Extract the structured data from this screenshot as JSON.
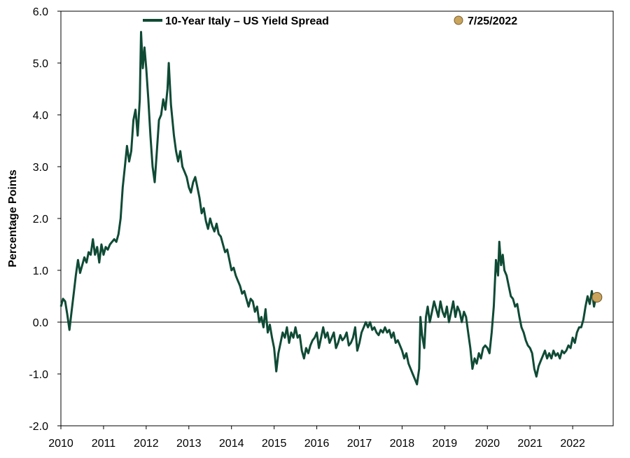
{
  "chart_data": {
    "type": "line",
    "ylabel": "Percentage Points",
    "xlabel": "",
    "ylim": [
      -2.0,
      6.0
    ],
    "xlim": [
      2010.0,
      2022.95
    ],
    "y_ticks": [
      "6.0",
      "5.0",
      "4.0",
      "3.0",
      "2.0",
      "1.0",
      "0.0",
      "-1.0",
      "-2.0"
    ],
    "y_tick_values": [
      6,
      5,
      4,
      3,
      2,
      1,
      0,
      -1,
      -2
    ],
    "x_ticks": [
      "2010",
      "2011",
      "2012",
      "2013",
      "2014",
      "2015",
      "2016",
      "2017",
      "2018",
      "2019",
      "2020",
      "2021",
      "2022"
    ],
    "x_tick_values": [
      2010,
      2011,
      2012,
      2013,
      2014,
      2015,
      2016,
      2017,
      2018,
      2019,
      2020,
      2021,
      2022
    ],
    "grid": false,
    "zero_line": true,
    "legend_position": "top",
    "series": [
      {
        "name": "10-Year Italy – US Yield Spread",
        "color": "#0f4a35",
        "points": [
          [
            2010.0,
            0.3
          ],
          [
            2010.05,
            0.45
          ],
          [
            2010.1,
            0.4
          ],
          [
            2010.15,
            0.15
          ],
          [
            2010.2,
            -0.15
          ],
          [
            2010.25,
            0.2
          ],
          [
            2010.3,
            0.55
          ],
          [
            2010.35,
            0.9
          ],
          [
            2010.4,
            1.2
          ],
          [
            2010.45,
            0.95
          ],
          [
            2010.5,
            1.1
          ],
          [
            2010.55,
            1.25
          ],
          [
            2010.6,
            1.15
          ],
          [
            2010.65,
            1.35
          ],
          [
            2010.7,
            1.3
          ],
          [
            2010.75,
            1.6
          ],
          [
            2010.8,
            1.3
          ],
          [
            2010.85,
            1.45
          ],
          [
            2010.9,
            1.15
          ],
          [
            2010.95,
            1.5
          ],
          [
            2011.0,
            1.3
          ],
          [
            2011.05,
            1.45
          ],
          [
            2011.1,
            1.4
          ],
          [
            2011.15,
            1.5
          ],
          [
            2011.2,
            1.55
          ],
          [
            2011.25,
            1.6
          ],
          [
            2011.3,
            1.55
          ],
          [
            2011.35,
            1.7
          ],
          [
            2011.4,
            2.0
          ],
          [
            2011.45,
            2.6
          ],
          [
            2011.5,
            3.0
          ],
          [
            2011.55,
            3.4
          ],
          [
            2011.6,
            3.1
          ],
          [
            2011.65,
            3.3
          ],
          [
            2011.7,
            3.9
          ],
          [
            2011.75,
            4.1
          ],
          [
            2011.8,
            3.6
          ],
          [
            2011.85,
            4.3
          ],
          [
            2011.88,
            5.6
          ],
          [
            2011.92,
            4.9
          ],
          [
            2011.96,
            5.3
          ],
          [
            2012.0,
            4.9
          ],
          [
            2012.05,
            4.3
          ],
          [
            2012.1,
            3.6
          ],
          [
            2012.15,
            3.0
          ],
          [
            2012.2,
            2.7
          ],
          [
            2012.25,
            3.3
          ],
          [
            2012.3,
            3.9
          ],
          [
            2012.35,
            4.0
          ],
          [
            2012.4,
            4.3
          ],
          [
            2012.45,
            4.1
          ],
          [
            2012.5,
            4.5
          ],
          [
            2012.53,
            5.0
          ],
          [
            2012.58,
            4.2
          ],
          [
            2012.65,
            3.6
          ],
          [
            2012.7,
            3.3
          ],
          [
            2012.75,
            3.1
          ],
          [
            2012.8,
            3.3
          ],
          [
            2012.85,
            3.0
          ],
          [
            2012.9,
            2.9
          ],
          [
            2012.95,
            2.8
          ],
          [
            2013.0,
            2.6
          ],
          [
            2013.05,
            2.5
          ],
          [
            2013.1,
            2.7
          ],
          [
            2013.15,
            2.8
          ],
          [
            2013.2,
            2.6
          ],
          [
            2013.25,
            2.4
          ],
          [
            2013.3,
            2.1
          ],
          [
            2013.35,
            2.2
          ],
          [
            2013.4,
            1.95
          ],
          [
            2013.45,
            1.8
          ],
          [
            2013.5,
            2.0
          ],
          [
            2013.55,
            1.85
          ],
          [
            2013.6,
            1.75
          ],
          [
            2013.65,
            1.9
          ],
          [
            2013.7,
            1.7
          ],
          [
            2013.75,
            1.65
          ],
          [
            2013.8,
            1.5
          ],
          [
            2013.85,
            1.35
          ],
          [
            2013.9,
            1.4
          ],
          [
            2013.95,
            1.2
          ],
          [
            2014.0,
            1.0
          ],
          [
            2014.05,
            1.05
          ],
          [
            2014.1,
            0.9
          ],
          [
            2014.15,
            0.8
          ],
          [
            2014.2,
            0.7
          ],
          [
            2014.25,
            0.55
          ],
          [
            2014.3,
            0.6
          ],
          [
            2014.35,
            0.45
          ],
          [
            2014.4,
            0.3
          ],
          [
            2014.45,
            0.45
          ],
          [
            2014.5,
            0.4
          ],
          [
            2014.55,
            0.2
          ],
          [
            2014.6,
            0.3
          ],
          [
            2014.65,
            0.0
          ],
          [
            2014.7,
            0.1
          ],
          [
            2014.75,
            -0.1
          ],
          [
            2014.8,
            0.25
          ],
          [
            2014.85,
            -0.2
          ],
          [
            2014.9,
            -0.05
          ],
          [
            2014.95,
            -0.3
          ],
          [
            2015.0,
            -0.5
          ],
          [
            2015.05,
            -0.95
          ],
          [
            2015.1,
            -0.6
          ],
          [
            2015.15,
            -0.4
          ],
          [
            2015.2,
            -0.2
          ],
          [
            2015.25,
            -0.3
          ],
          [
            2015.3,
            -0.1
          ],
          [
            2015.35,
            -0.4
          ],
          [
            2015.4,
            -0.2
          ],
          [
            2015.45,
            -0.3
          ],
          [
            2015.5,
            -0.1
          ],
          [
            2015.55,
            -0.3
          ],
          [
            2015.6,
            -0.25
          ],
          [
            2015.65,
            -0.55
          ],
          [
            2015.7,
            -0.7
          ],
          [
            2015.75,
            -0.5
          ],
          [
            2015.8,
            -0.6
          ],
          [
            2015.85,
            -0.45
          ],
          [
            2015.9,
            -0.35
          ],
          [
            2015.95,
            -0.3
          ],
          [
            2016.0,
            -0.2
          ],
          [
            2016.05,
            -0.5
          ],
          [
            2016.1,
            -0.3
          ],
          [
            2016.15,
            -0.1
          ],
          [
            2016.2,
            -0.3
          ],
          [
            2016.25,
            -0.2
          ],
          [
            2016.3,
            -0.4
          ],
          [
            2016.35,
            -0.3
          ],
          [
            2016.4,
            -0.2
          ],
          [
            2016.45,
            -0.5
          ],
          [
            2016.5,
            -0.4
          ],
          [
            2016.55,
            -0.25
          ],
          [
            2016.6,
            -0.35
          ],
          [
            2016.65,
            -0.3
          ],
          [
            2016.7,
            -0.2
          ],
          [
            2016.75,
            -0.45
          ],
          [
            2016.8,
            -0.4
          ],
          [
            2016.85,
            -0.3
          ],
          [
            2016.9,
            -0.1
          ],
          [
            2016.95,
            -0.55
          ],
          [
            2017.0,
            -0.4
          ],
          [
            2017.05,
            -0.2
          ],
          [
            2017.1,
            -0.1
          ],
          [
            2017.15,
            0.0
          ],
          [
            2017.2,
            -0.1
          ],
          [
            2017.25,
            0.0
          ],
          [
            2017.3,
            -0.15
          ],
          [
            2017.35,
            -0.1
          ],
          [
            2017.4,
            -0.2
          ],
          [
            2017.45,
            -0.25
          ],
          [
            2017.5,
            -0.15
          ],
          [
            2017.55,
            -0.2
          ],
          [
            2017.6,
            -0.1
          ],
          [
            2017.65,
            -0.2
          ],
          [
            2017.7,
            -0.15
          ],
          [
            2017.75,
            -0.3
          ],
          [
            2017.8,
            -0.2
          ],
          [
            2017.85,
            -0.4
          ],
          [
            2017.9,
            -0.35
          ],
          [
            2017.95,
            -0.45
          ],
          [
            2018.0,
            -0.55
          ],
          [
            2018.05,
            -0.7
          ],
          [
            2018.1,
            -0.6
          ],
          [
            2018.15,
            -0.8
          ],
          [
            2018.2,
            -0.9
          ],
          [
            2018.25,
            -1.0
          ],
          [
            2018.3,
            -1.1
          ],
          [
            2018.35,
            -1.2
          ],
          [
            2018.4,
            -0.9
          ],
          [
            2018.43,
            0.1
          ],
          [
            2018.47,
            -0.25
          ],
          [
            2018.52,
            -0.5
          ],
          [
            2018.56,
            0.1
          ],
          [
            2018.6,
            0.3
          ],
          [
            2018.65,
            0.0
          ],
          [
            2018.7,
            0.2
          ],
          [
            2018.75,
            0.4
          ],
          [
            2018.8,
            0.25
          ],
          [
            2018.85,
            0.1
          ],
          [
            2018.9,
            0.4
          ],
          [
            2018.95,
            0.2
          ],
          [
            2019.0,
            0.1
          ],
          [
            2019.05,
            0.3
          ],
          [
            2019.1,
            0.0
          ],
          [
            2019.15,
            0.2
          ],
          [
            2019.2,
            0.4
          ],
          [
            2019.25,
            0.1
          ],
          [
            2019.3,
            0.3
          ],
          [
            2019.35,
            0.2
          ],
          [
            2019.4,
            0.0
          ],
          [
            2019.45,
            0.2
          ],
          [
            2019.5,
            0.1
          ],
          [
            2019.55,
            -0.2
          ],
          [
            2019.6,
            -0.5
          ],
          [
            2019.65,
            -0.9
          ],
          [
            2019.7,
            -0.7
          ],
          [
            2019.75,
            -0.8
          ],
          [
            2019.8,
            -0.6
          ],
          [
            2019.85,
            -0.7
          ],
          [
            2019.9,
            -0.5
          ],
          [
            2019.95,
            -0.45
          ],
          [
            2020.0,
            -0.5
          ],
          [
            2020.05,
            -0.6
          ],
          [
            2020.1,
            -0.2
          ],
          [
            2020.15,
            0.3
          ],
          [
            2020.2,
            1.2
          ],
          [
            2020.25,
            0.9
          ],
          [
            2020.28,
            1.55
          ],
          [
            2020.32,
            1.1
          ],
          [
            2020.36,
            1.3
          ],
          [
            2020.4,
            1.0
          ],
          [
            2020.45,
            0.9
          ],
          [
            2020.5,
            0.7
          ],
          [
            2020.55,
            0.5
          ],
          [
            2020.6,
            0.45
          ],
          [
            2020.65,
            0.3
          ],
          [
            2020.7,
            0.35
          ],
          [
            2020.75,
            0.1
          ],
          [
            2020.8,
            -0.1
          ],
          [
            2020.85,
            -0.2
          ],
          [
            2020.9,
            -0.35
          ],
          [
            2020.95,
            -0.45
          ],
          [
            2021.0,
            -0.5
          ],
          [
            2021.05,
            -0.6
          ],
          [
            2021.1,
            -0.9
          ],
          [
            2021.15,
            -1.05
          ],
          [
            2021.2,
            -0.85
          ],
          [
            2021.25,
            -0.75
          ],
          [
            2021.3,
            -0.65
          ],
          [
            2021.35,
            -0.55
          ],
          [
            2021.4,
            -0.7
          ],
          [
            2021.45,
            -0.6
          ],
          [
            2021.5,
            -0.7
          ],
          [
            2021.55,
            -0.55
          ],
          [
            2021.6,
            -0.65
          ],
          [
            2021.65,
            -0.6
          ],
          [
            2021.7,
            -0.7
          ],
          [
            2021.75,
            -0.55
          ],
          [
            2021.8,
            -0.6
          ],
          [
            2021.85,
            -0.55
          ],
          [
            2021.9,
            -0.45
          ],
          [
            2021.95,
            -0.5
          ],
          [
            2022.0,
            -0.3
          ],
          [
            2022.05,
            -0.4
          ],
          [
            2022.1,
            -0.2
          ],
          [
            2022.15,
            -0.1
          ],
          [
            2022.2,
            -0.1
          ],
          [
            2022.25,
            0.05
          ],
          [
            2022.3,
            0.3
          ],
          [
            2022.35,
            0.5
          ],
          [
            2022.4,
            0.35
          ],
          [
            2022.45,
            0.6
          ],
          [
            2022.5,
            0.3
          ],
          [
            2022.55,
            0.5
          ],
          [
            2022.57,
            0.48
          ]
        ]
      }
    ],
    "highlight_point": {
      "label": "7/25/2022",
      "x": 2022.57,
      "y": 0.48,
      "color": "#c9a45c"
    }
  }
}
